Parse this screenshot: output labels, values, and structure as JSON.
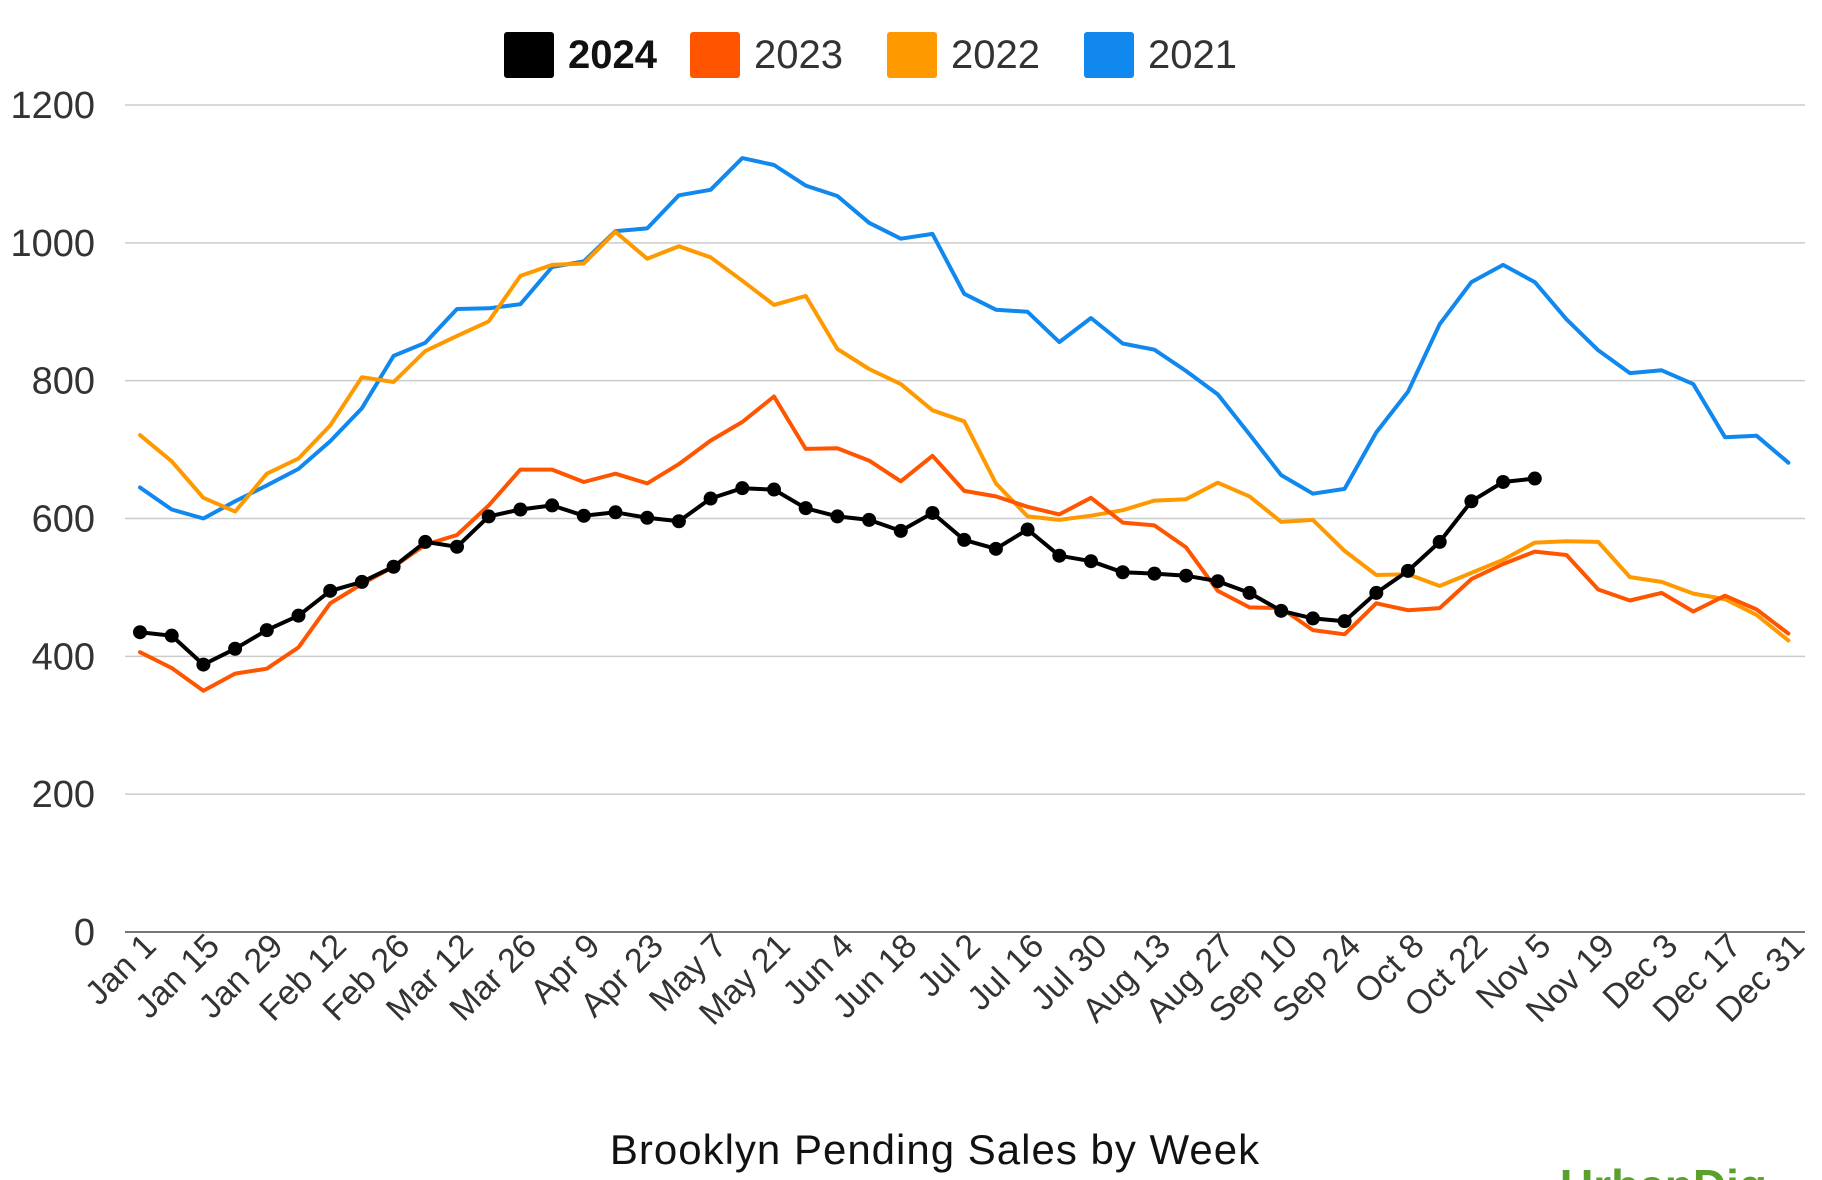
{
  "chart_data": {
    "type": "line",
    "title": "Brooklyn Pending Sales by Week",
    "ylim": [
      0,
      1200
    ],
    "yticks": [
      0,
      200,
      400,
      600,
      800,
      1000,
      1200
    ],
    "grid": true,
    "legend_position": "top",
    "x_tick_labels": [
      "Jan 1",
      "Jan 15",
      "Jan 29",
      "Feb 12",
      "Feb 26",
      "Mar 12",
      "Mar 26",
      "Apr 9",
      "Apr 23",
      "May 7",
      "May 21",
      "Jun 4",
      "Jun 18",
      "Jul 2",
      "Jul 16",
      "Jul 30",
      "Aug 13",
      "Aug 27",
      "Sep 10",
      "Sep 24",
      "Oct 8",
      "Oct 22",
      "Nov 5",
      "Nov 19",
      "Dec 3",
      "Dec 17",
      "Dec 31"
    ],
    "series": [
      {
        "name": "2024",
        "color": "#000000",
        "markers": true,
        "values": [
          435,
          430,
          388,
          411,
          438,
          459,
          495,
          508,
          530,
          566,
          559,
          603,
          613,
          619,
          604,
          609,
          601,
          596,
          629,
          644,
          642,
          615,
          603,
          598,
          582,
          608,
          569,
          556,
          584,
          546,
          538,
          522,
          520,
          517,
          509,
          492,
          466,
          455,
          451,
          492,
          524,
          566,
          625,
          653,
          658
        ]
      },
      {
        "name": "2023",
        "color": "#ff5500",
        "markers": false,
        "values": [
          406,
          383,
          350,
          375,
          382,
          413,
          477,
          505,
          530,
          562,
          576,
          619,
          671,
          671,
          653,
          665,
          651,
          679,
          713,
          740,
          777,
          701,
          702,
          684,
          654,
          691,
          640,
          632,
          617,
          606,
          630,
          594,
          590,
          558,
          495,
          471,
          470,
          438,
          432,
          477,
          467,
          470,
          512,
          534,
          552,
          547,
          497,
          481,
          492,
          465,
          488,
          468,
          433
        ]
      },
      {
        "name": "2022",
        "color": "#ff9900",
        "markers": false,
        "values": [
          721,
          683,
          630,
          610,
          665,
          687,
          735,
          805,
          798,
          843,
          865,
          886,
          952,
          968,
          970,
          1016,
          977,
          995,
          979,
          945,
          910,
          923,
          846,
          817,
          795,
          757,
          741,
          651,
          603,
          598,
          604,
          612,
          626,
          628,
          652,
          632,
          595,
          598,
          553,
          518,
          519,
          502,
          521,
          540,
          565,
          567,
          566,
          515,
          508,
          491,
          483,
          460,
          423
        ]
      },
      {
        "name": "2021",
        "color": "#1188ee",
        "markers": false,
        "values": [
          645,
          613,
          600,
          625,
          648,
          672,
          712,
          760,
          836,
          855,
          904,
          905,
          911,
          965,
          973,
          1017,
          1021,
          1069,
          1077,
          1123,
          1113,
          1083,
          1068,
          1029,
          1006,
          1013,
          926,
          903,
          900,
          856,
          891,
          854,
          845,
          814,
          780,
          722,
          663,
          636,
          643,
          725,
          784,
          882,
          943,
          968,
          943,
          889,
          844,
          811,
          815,
          795,
          718,
          720,
          681
        ]
      }
    ]
  },
  "branding": {
    "logo_text": "UrbanDig"
  }
}
